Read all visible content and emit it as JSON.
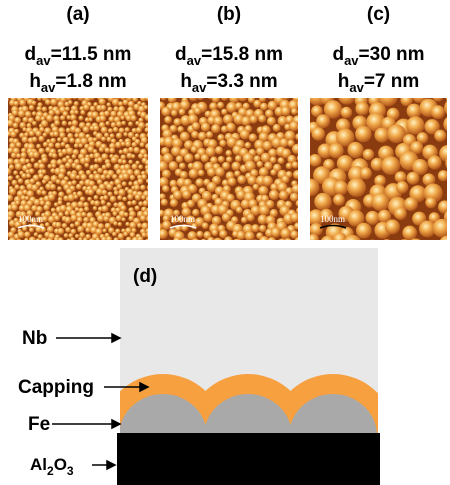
{
  "panels": [
    {
      "label": "(a)",
      "d": {
        "symbol": "d",
        "sub": "av",
        "rest": "=11.5 nm"
      },
      "h": {
        "symbol": "h",
        "sub": "av",
        "rest": "=1.8 nm"
      },
      "scale_bar": "100nm"
    },
    {
      "label": "(b)",
      "d": {
        "symbol": "d",
        "sub": "av",
        "rest": "=15.8 nm"
      },
      "h": {
        "symbol": "h",
        "sub": "av",
        "rest": "=3.3 nm"
      },
      "scale_bar": "100nm"
    },
    {
      "label": "(c)",
      "d": {
        "symbol": "d",
        "sub": "av",
        "rest": "=30 nm"
      },
      "h": {
        "symbol": "h",
        "sub": "av",
        "rest": "=7 nm"
      },
      "scale_bar": "100nm"
    }
  ],
  "schematic": {
    "label": "(d)",
    "layers": {
      "nb": "Nb",
      "capping": "Capping",
      "fe": "Fe",
      "substrate": {
        "parts": [
          "Al",
          "2",
          "O",
          "3"
        ]
      }
    }
  }
}
